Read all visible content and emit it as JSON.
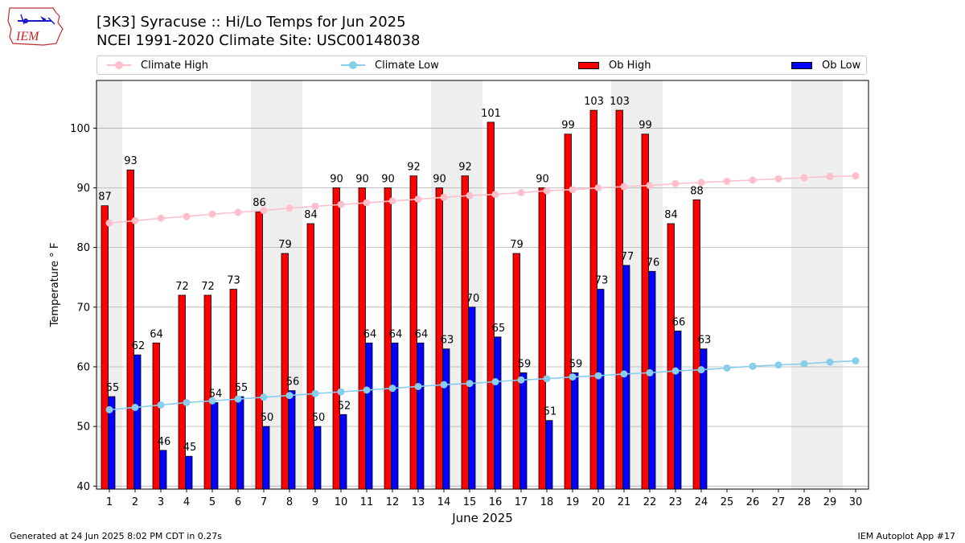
{
  "header": {
    "title_line1": "[3K3] Syracuse :: Hi/Lo Temps for Jun 2025",
    "title_line2": "NCEI 1991-2020 Climate Site: USC00148038"
  },
  "logo": {
    "text": "IEM"
  },
  "legend": {
    "climate_high": "Climate High",
    "climate_low": "Climate Low",
    "ob_high": "Ob High",
    "ob_low": "Ob Low"
  },
  "footer": {
    "left": "Generated at 24 Jun 2025 8:02 PM CDT in 0.27s",
    "right": "IEM Autoplot App #17"
  },
  "colors": {
    "ob_high": "#ff0000",
    "ob_low": "#0000ff",
    "climate_high": "#ffc0cb",
    "climate_low": "#87ceeb",
    "weekend_shade": "#eeeeee",
    "grid": "#b0b0b0"
  },
  "chart_data": {
    "type": "bar",
    "xlabel": "June 2025",
    "ylabel": "Temperature ° F",
    "xlim": [
      0.5,
      30.5
    ],
    "ylim": [
      39.5,
      108
    ],
    "y_ticks": [
      40,
      50,
      60,
      70,
      80,
      90,
      100
    ],
    "grid": "horizontal",
    "legend_position": "top",
    "x": [
      1,
      2,
      3,
      4,
      5,
      6,
      7,
      8,
      9,
      10,
      11,
      12,
      13,
      14,
      15,
      16,
      17,
      18,
      19,
      20,
      21,
      22,
      23,
      24,
      25,
      26,
      27,
      28,
      29,
      30
    ],
    "weekend_days": [
      1,
      7,
      8,
      14,
      15,
      21,
      22,
      28,
      29
    ],
    "series": [
      {
        "name": "Ob High",
        "kind": "bar",
        "values": [
          87,
          93,
          64,
          72,
          72,
          73,
          86,
          79,
          84,
          90,
          90,
          90,
          92,
          90,
          92,
          101,
          79,
          90,
          99,
          103,
          103,
          99,
          84,
          88,
          null,
          null,
          null,
          null,
          null,
          null
        ]
      },
      {
        "name": "Ob Low",
        "kind": "bar",
        "values": [
          55,
          62,
          46,
          45,
          54,
          55,
          50,
          56,
          50,
          52,
          64,
          64,
          64,
          63,
          70,
          65,
          59,
          51,
          59,
          73,
          77,
          76,
          66,
          63,
          null,
          null,
          null,
          null,
          null,
          null
        ]
      },
      {
        "name": "Climate High",
        "kind": "line",
        "values": [
          84.1,
          84.5,
          84.9,
          85.2,
          85.6,
          85.9,
          86.2,
          86.6,
          86.9,
          87.2,
          87.5,
          87.8,
          88.1,
          88.4,
          88.7,
          88.9,
          89.2,
          89.5,
          89.7,
          90.0,
          90.2,
          90.4,
          90.7,
          90.9,
          91.1,
          91.3,
          91.5,
          91.7,
          91.9,
          92.0
        ]
      },
      {
        "name": "Climate Low",
        "kind": "line",
        "values": [
          52.8,
          53.2,
          53.6,
          54.0,
          54.3,
          54.6,
          54.9,
          55.2,
          55.5,
          55.8,
          56.1,
          56.4,
          56.7,
          57.0,
          57.2,
          57.5,
          57.8,
          58.0,
          58.3,
          58.5,
          58.8,
          59.0,
          59.3,
          59.5,
          59.8,
          60.1,
          60.3,
          60.5,
          60.8,
          61.0
        ]
      }
    ]
  }
}
